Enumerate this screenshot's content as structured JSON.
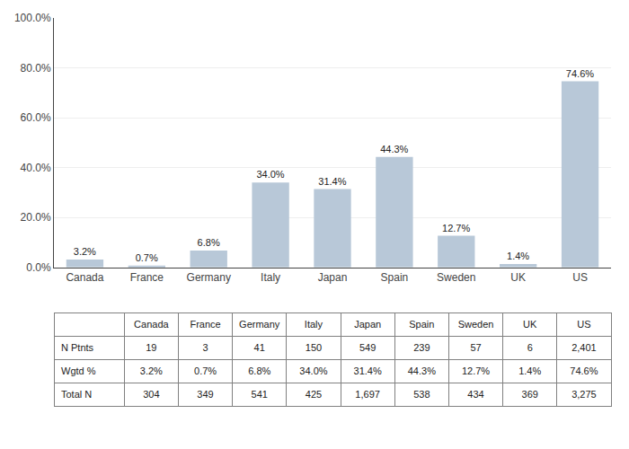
{
  "chart_data": {
    "type": "bar",
    "categories": [
      "Canada",
      "France",
      "Germany",
      "Italy",
      "Japan",
      "Spain",
      "Sweden",
      "UK",
      "US"
    ],
    "values": [
      3.2,
      0.7,
      6.8,
      34.0,
      31.4,
      44.3,
      12.7,
      1.4,
      74.6
    ],
    "value_labels": [
      "3.2%",
      "0.7%",
      "6.8%",
      "34.0%",
      "31.4%",
      "44.3%",
      "12.7%",
      "1.4%",
      "74.6%"
    ],
    "data_labels": true,
    "color": "#b8c8d8",
    "ylim": [
      0,
      100
    ],
    "yticks": [
      {
        "value": 0,
        "label": "0.0%"
      },
      {
        "value": 20,
        "label": "20.0%"
      },
      {
        "value": 40,
        "label": "40.0%"
      },
      {
        "value": 60,
        "label": "60.0%"
      },
      {
        "value": 80,
        "label": "80.0%"
      },
      {
        "value": 100,
        "label": "100.0%"
      }
    ],
    "grid": true,
    "table": {
      "rows": [
        {
          "label": "N Ptnts",
          "values": [
            19,
            3,
            41,
            150,
            549,
            239,
            57,
            6,
            2401
          ],
          "value_labels": [
            "19",
            "3",
            "41",
            "150",
            "549",
            "239",
            "57",
            "6",
            "2,401"
          ]
        },
        {
          "label": "Wgtd %",
          "values": [
            3.2,
            0.7,
            6.8,
            34.0,
            31.4,
            44.3,
            12.7,
            1.4,
            74.6
          ],
          "value_labels": [
            "3.2%",
            "0.7%",
            "6.8%",
            "34.0%",
            "31.4%",
            "44.3%",
            "12.7%",
            "1.4%",
            "74.6%"
          ]
        },
        {
          "label": "Total N",
          "values": [
            304,
            349,
            541,
            425,
            1697,
            538,
            434,
            369,
            3275
          ],
          "value_labels": [
            "304",
            "349",
            "541",
            "425",
            "1,697",
            "538",
            "434",
            "369",
            "3,275"
          ]
        }
      ]
    }
  }
}
